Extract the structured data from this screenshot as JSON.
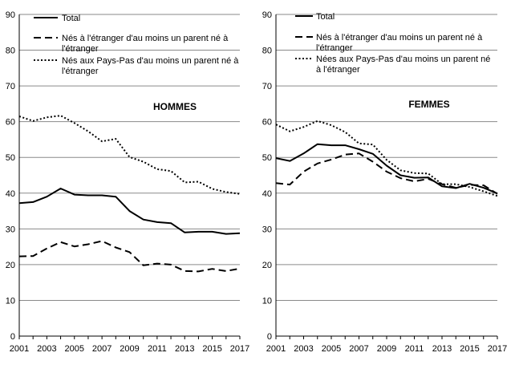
{
  "chart_data": [
    {
      "type": "line",
      "title": "HOMMES",
      "x": [
        2001,
        2002,
        2003,
        2004,
        2005,
        2006,
        2007,
        2008,
        2009,
        2010,
        2011,
        2012,
        2013,
        2014,
        2015,
        2016,
        2017
      ],
      "xticks": [
        "2001",
        "2003",
        "2005",
        "2007",
        "2009",
        "2011",
        "2013",
        "2015",
        "2017"
      ],
      "yticks": [
        "0",
        "10",
        "20",
        "30",
        "40",
        "50",
        "60",
        "70",
        "80",
        "90"
      ],
      "ylim": [
        0,
        90
      ],
      "grid": true,
      "legend_position": "top-left",
      "series": [
        {
          "name": "Total",
          "style": "solid",
          "values": [
            37.2,
            37.5,
            39.0,
            41.3,
            39.6,
            39.4,
            39.4,
            39.0,
            35.0,
            32.6,
            31.9,
            31.6,
            29.0,
            29.2,
            29.2,
            28.6,
            28.8
          ]
        },
        {
          "name": "Nés à l'étranger d'au moins un parent né à l'étranger",
          "style": "dashed",
          "values": [
            22.3,
            22.4,
            24.5,
            26.3,
            25.1,
            25.7,
            26.6,
            24.8,
            23.5,
            19.8,
            20.3,
            20.0,
            18.2,
            18.1,
            18.8,
            18.2,
            18.9
          ]
        },
        {
          "name": "Nés aux Pays-Pas d'au moins un parent né à l'étranger",
          "style": "dotted",
          "values": [
            61.5,
            60.2,
            61.2,
            61.7,
            59.6,
            57.3,
            54.5,
            55.2,
            50.1,
            48.8,
            46.7,
            46.2,
            43.0,
            43.2,
            41.2,
            40.3,
            39.8
          ]
        }
      ]
    },
    {
      "type": "line",
      "title": "FEMMES",
      "x": [
        2001,
        2002,
        2003,
        2004,
        2005,
        2006,
        2007,
        2008,
        2009,
        2010,
        2011,
        2012,
        2013,
        2014,
        2015,
        2016,
        2017
      ],
      "xticks": [
        "2001",
        "2003",
        "2005",
        "2007",
        "2009",
        "2011",
        "2013",
        "2015",
        "2017"
      ],
      "yticks": [
        "0",
        "10",
        "20",
        "30",
        "40",
        "50",
        "60",
        "70",
        "80",
        "90"
      ],
      "ylim": [
        0,
        90
      ],
      "grid": true,
      "legend_position": "top-left",
      "series": [
        {
          "name": "Total",
          "style": "solid",
          "values": [
            49.8,
            49.0,
            51.1,
            53.7,
            53.4,
            53.4,
            52.3,
            51.0,
            47.7,
            45.0,
            44.3,
            44.4,
            41.9,
            41.4,
            42.6,
            41.5,
            39.9
          ]
        },
        {
          "name": "Nés à l'étranger d'au moins un parent né à l'étranger",
          "style": "dashed",
          "values": [
            42.8,
            42.4,
            46.0,
            48.3,
            49.4,
            50.8,
            51.1,
            48.8,
            46.0,
            44.2,
            43.3,
            44.0,
            42.5,
            41.5,
            42.3,
            42.2,
            39.8
          ]
        },
        {
          "name": "Nées aux Pays-Pas d'au moins un parent né à l'étranger",
          "style": "dotted",
          "values": [
            59.2,
            57.3,
            58.5,
            60.2,
            59.0,
            57.1,
            53.9,
            53.6,
            49.3,
            46.4,
            45.6,
            45.5,
            42.5,
            42.5,
            41.7,
            40.5,
            39.2
          ]
        }
      ]
    }
  ]
}
